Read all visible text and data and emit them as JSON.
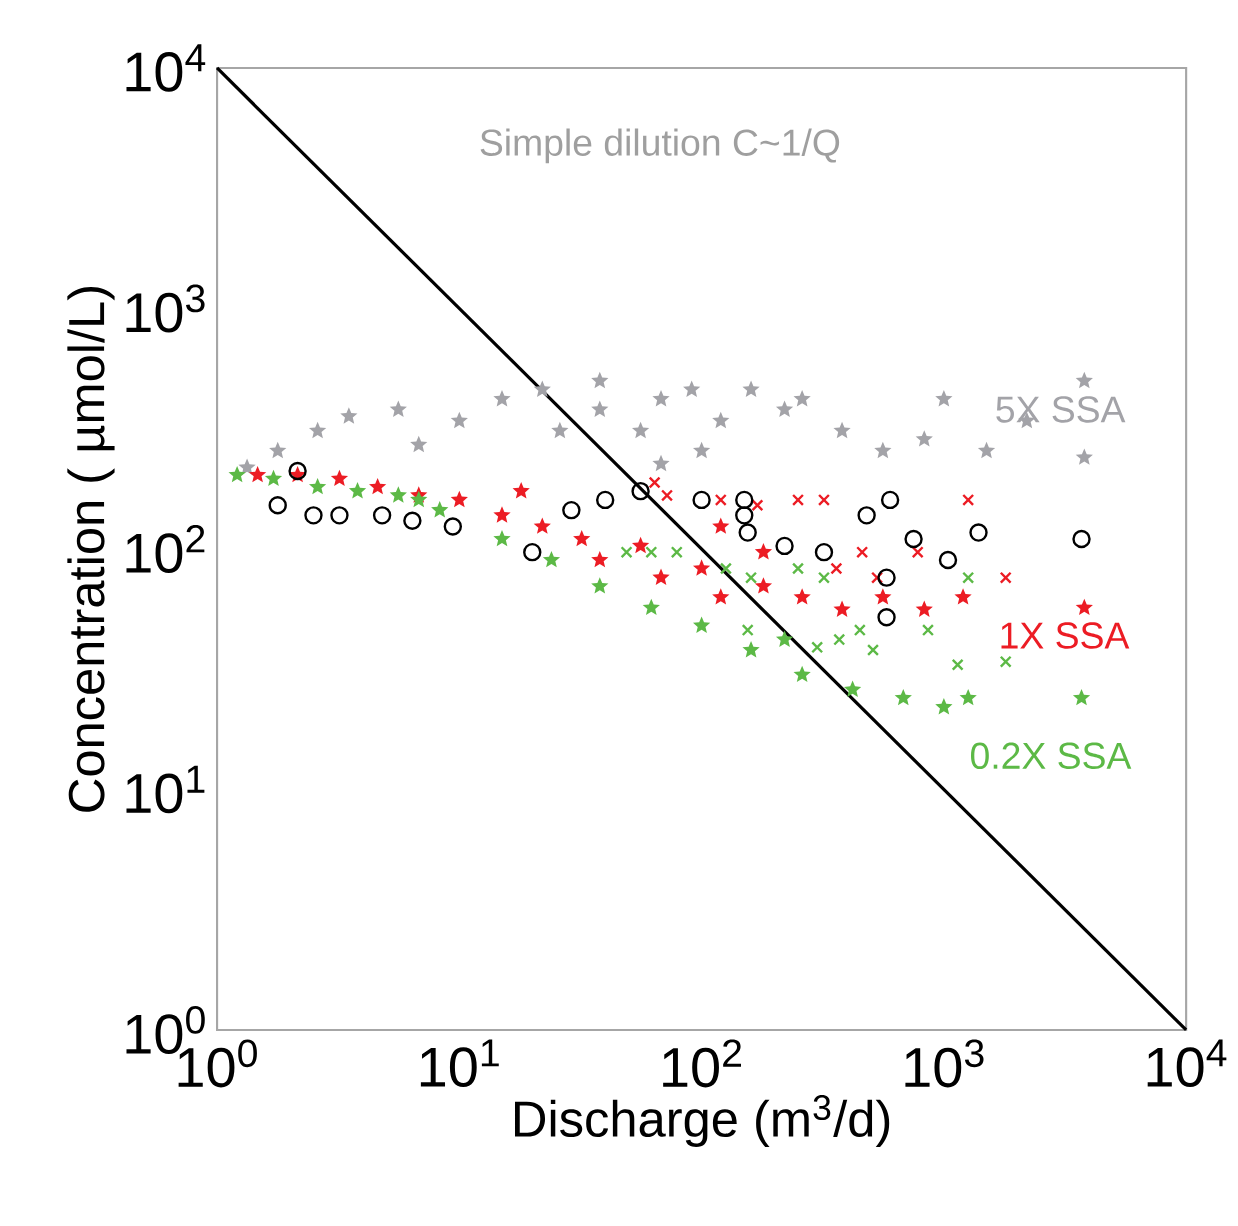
{
  "chart_data": {
    "type": "scatter",
    "xlabel": "Discharge (m$^{3}$/d)",
    "ylabel": "Concentration ( µmol/L)",
    "log": "xy",
    "xlim": [
      1,
      10000
    ],
    "ylim": [
      1,
      10000
    ],
    "xticks": [
      {
        "value": 1,
        "label": "10$^{0}$"
      },
      {
        "value": 10,
        "label": "10$^{1}$"
      },
      {
        "value": 100,
        "label": "10$^{2}$"
      },
      {
        "value": 1000,
        "label": "10$^{3}$"
      },
      {
        "value": 10000,
        "label": "10$^{4}$"
      }
    ],
    "yticks": [
      {
        "value": 1,
        "label": "10$^{0}$"
      },
      {
        "value": 10,
        "label": "10$^{1}$"
      },
      {
        "value": 100,
        "label": "10$^{2}$"
      },
      {
        "value": 1000,
        "label": "10$^{3}$"
      },
      {
        "value": 10000,
        "label": "10$^{4}$"
      }
    ],
    "annotations": [
      "Simple dilution C~1/Q"
    ],
    "series": [
      {
        "type": "line",
        "color": "#000000",
        "marker": "none",
        "x": [
          1,
          10000
        ],
        "values": [
          10000,
          1
        ]
      },
      {
        "name": "5X SSA",
        "color": "#a3a3a8",
        "marker": "star",
        "x": [
          1.33,
          1.78,
          2.6,
          3.5,
          5.6,
          6.8,
          10,
          15,
          22,
          26,
          38,
          56,
          68,
          91,
          120,
          160,
          220,
          260,
          380,
          560,
          830,
          1000,
          1500,
          2200,
          3800,
          3800,
          38,
          100,
          68
        ],
        "values": [
          218,
          256,
          310,
          356,
          380,
          271,
          341,
          420,
          460,
          310,
          380,
          310,
          420,
          460,
          341,
          460,
          380,
          420,
          310,
          256,
          286,
          420,
          256,
          341,
          500,
          240,
          500,
          256,
          226
        ]
      },
      {
        "name": "1X SSA",
        "color": "#ec1c24",
        "marker": "star",
        "x": [
          1.47,
          2.15,
          3.2,
          4.6,
          6.8,
          10,
          15,
          18,
          22,
          32,
          38,
          56,
          68,
          100,
          120,
          180,
          260,
          380,
          560,
          830,
          1200,
          3800,
          120,
          180
        ],
        "values": [
          203,
          203,
          196,
          181,
          167,
          160,
          138,
          174,
          124,
          110,
          90,
          103,
          76,
          83,
          63,
          70,
          63,
          56,
          63,
          56,
          63,
          57,
          124,
          97
        ]
      },
      {
        "color": "#ec1c24",
        "marker": "cross",
        "x": [
          64,
          72,
          120,
          170,
          250,
          320,
          360,
          460,
          530,
          780,
          1260,
          1800
        ],
        "values": [
          189,
          167,
          160,
          152,
          160,
          160,
          83,
          97,
          76,
          97,
          160,
          76
        ]
      },
      {
        "color": "#000000",
        "marker": "circle",
        "x": [
          1.78,
          2.5,
          3.2,
          4.8,
          6.4,
          9.4,
          2.15,
          20,
          29,
          40,
          56,
          100,
          150,
          150,
          155,
          220,
          320,
          480,
          600,
          750,
          1040,
          1390,
          3700,
          580,
          580
        ],
        "values": [
          152,
          138,
          138,
          138,
          131,
          124,
          211,
          97,
          145,
          160,
          174,
          160,
          160,
          138,
          117,
          103,
          97,
          138,
          160,
          110,
          90,
          117,
          110,
          76,
          52
        ]
      },
      {
        "name": "0.2X SSA",
        "color": "#5cb946",
        "marker": "star",
        "x": [
          1.21,
          1.71,
          2.6,
          3.8,
          5.6,
          6.8,
          8.3,
          15,
          24,
          38,
          62,
          100,
          160,
          260,
          420,
          680,
          1000,
          1260,
          3700,
          220
        ],
        "values": [
          203,
          196,
          181,
          174,
          167,
          160,
          145,
          110,
          90,
          70,
          57,
          48,
          38,
          30,
          26,
          24,
          22,
          24,
          24,
          42
        ]
      },
      {
        "color": "#5cb946",
        "marker": "cross",
        "x": [
          49,
          62,
          79,
          126,
          160,
          250,
          320,
          155,
          300,
          370,
          450,
          510,
          860,
          1140,
          1260,
          1800
        ],
        "values": [
          97,
          97,
          97,
          83,
          76,
          83,
          76,
          46,
          39,
          42,
          46,
          38,
          46,
          33,
          76,
          34
        ]
      }
    ]
  }
}
